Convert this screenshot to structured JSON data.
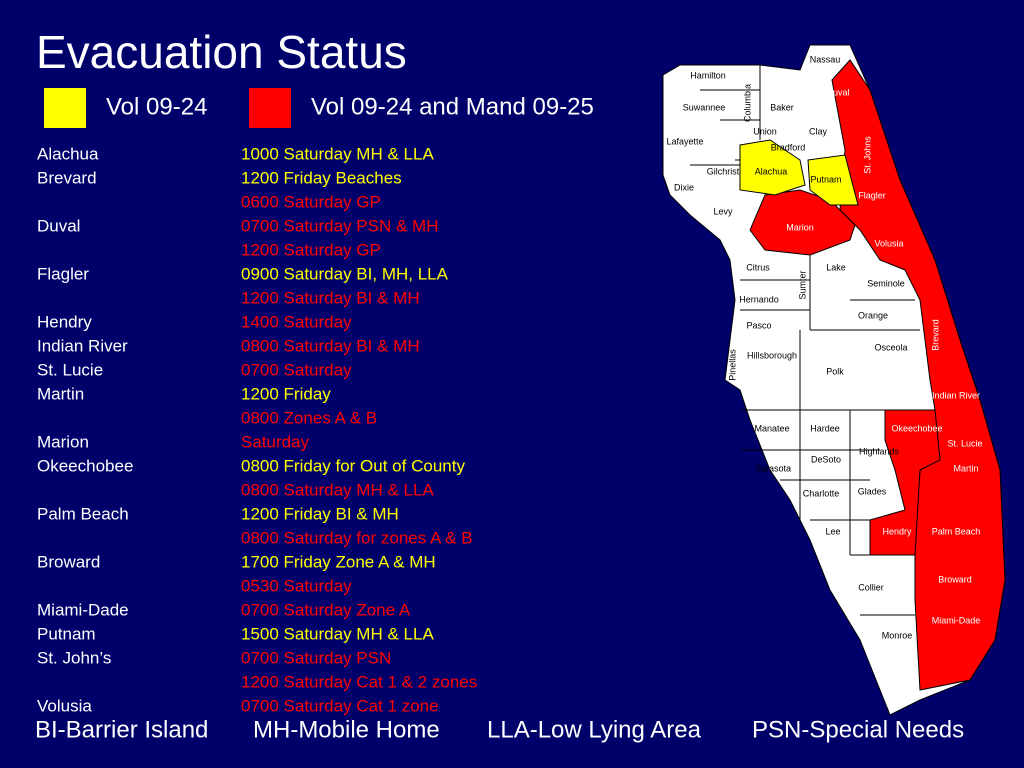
{
  "header": {
    "title": "Evacuation Status"
  },
  "legend": [
    {
      "label": "Vol 09-24",
      "color": "#ffff00"
    },
    {
      "label": "Vol 09-24 and Mand 09-25",
      "color": "#ff0000"
    }
  ],
  "table": {
    "rows": [
      {
        "county": "Alachua",
        "times": [
          {
            "text": "1000 Saturday MH & LLA",
            "color": "#ffff00"
          }
        ]
      },
      {
        "county": "Brevard",
        "times": [
          {
            "text": "1200 Friday Beaches",
            "color": "#ffff00"
          },
          {
            "text": "0600 Saturday GP",
            "color": "#ff0000"
          }
        ]
      },
      {
        "county": "Duval",
        "times": [
          {
            "text": "0700 Saturday PSN & MH",
            "color": "#ff0000"
          },
          {
            "text": "1200 Saturday GP",
            "color": "#ff0000"
          }
        ]
      },
      {
        "county": "Flagler",
        "times": [
          {
            "text": "0900 Saturday BI, MH, LLA",
            "color": "#ffff00"
          },
          {
            "text": "1200 Saturday BI & MH",
            "color": "#ff0000"
          }
        ]
      },
      {
        "county": "Hendry",
        "times": [
          {
            "text": "1400 Saturday",
            "color": "#ff0000"
          }
        ]
      },
      {
        "county": "Indian River",
        "times": [
          {
            "text": "0800 Saturday BI & MH",
            "color": "#ff0000"
          }
        ]
      },
      {
        "county": "St. Lucie",
        "times": [
          {
            "text": "0700 Saturday",
            "color": "#ff0000"
          }
        ]
      },
      {
        "county": "Martin",
        "times": [
          {
            "text": "1200 Friday",
            "color": "#ffff00"
          },
          {
            "text": "0800 Zones A & B",
            "color": "#ff0000"
          }
        ]
      },
      {
        "county": "Marion",
        "times": [
          {
            "text": "Saturday",
            "color": "#ff0000"
          }
        ]
      },
      {
        "county": "Okeechobee",
        "times": [
          {
            "text": "0800 Friday for Out of County",
            "color": "#ffff00"
          },
          {
            "text": "0800 Saturday MH & LLA",
            "color": "#ff0000"
          }
        ]
      },
      {
        "county": "Palm Beach",
        "times": [
          {
            "text": "1200 Friday BI & MH",
            "color": "#ffff00"
          },
          {
            "text": "0800 Saturday for zones A & B",
            "color": "#ff0000"
          }
        ]
      },
      {
        "county": "Broward",
        "times": [
          {
            "text": "1700 Friday Zone A & MH",
            "color": "#ffff00"
          },
          {
            "text": "0530 Saturday",
            "color": "#ff0000"
          }
        ]
      },
      {
        "county": "Miami-Dade",
        "times": [
          {
            "text": "0700 Saturday Zone A",
            "color": "#ff0000"
          }
        ]
      },
      {
        "county": "Putnam",
        "times": [
          {
            "text": "1500 Saturday MH & LLA",
            "color": "#ffff00"
          }
        ]
      },
      {
        "county": "St. John’s",
        "times": [
          {
            "text": "0700 Saturday PSN",
            "color": "#ff0000"
          },
          {
            "text": "1200 Saturday Cat 1 & 2 zones",
            "color": "#ff0000"
          }
        ]
      },
      {
        "county": "Volusia",
        "times": [
          {
            "text": "0700 Saturday Cat 1 zone",
            "color": "#ff0000"
          }
        ]
      }
    ]
  },
  "footer": [
    "BI-Barrier Island",
    "MH-Mobile Home",
    "LLA-Low Lying Area",
    "PSN-Special Needs"
  ],
  "map": {
    "counties": [
      "Nassau",
      "Hamilton",
      "Duval",
      "Suwannee",
      "Columbia",
      "Baker",
      "Union",
      "Clay",
      "St. Johns",
      "Lafayette",
      "Bradford",
      "Gilchrist",
      "Alachua",
      "Putnam",
      "Dixie",
      "Flagler",
      "Levy",
      "Marion",
      "Volusia",
      "Citrus",
      "Lake",
      "Sumter",
      "Seminole",
      "Hernando",
      "Pasco",
      "Orange",
      "Brevard",
      "Pinellas",
      "Hillsborough",
      "Osceola",
      "Polk",
      "Indian River",
      "Okeechobee",
      "Manatee",
      "Hardee",
      "St. Lucie",
      "Highlands",
      "DeSoto",
      "Sarasota",
      "Martin",
      "Glades",
      "Charlotte",
      "Lee",
      "Hendry",
      "Palm Beach",
      "Broward",
      "Collier",
      "Miami-Dade",
      "Monroe"
    ]
  }
}
